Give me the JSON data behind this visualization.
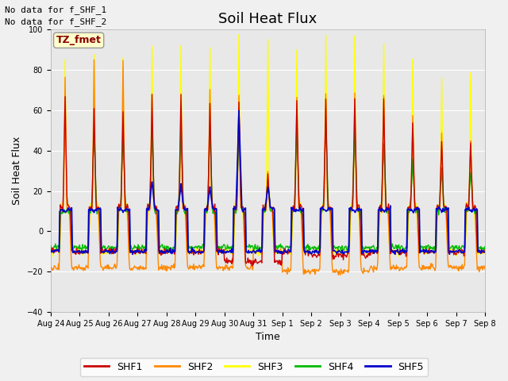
{
  "title": "Soil Heat Flux",
  "ylabel": "Soil Heat Flux",
  "xlabel": "Time",
  "annotations": [
    "No data for f_SHF_1",
    "No data for f_SHF_2"
  ],
  "tz_label": "TZ_fmet",
  "ylim": [
    -40,
    100
  ],
  "yticks": [
    -40,
    -20,
    0,
    20,
    40,
    60,
    80,
    100
  ],
  "x_tick_labels": [
    "Aug 24",
    "Aug 25",
    "Aug 26",
    "Aug 27",
    "Aug 28",
    "Aug 29",
    "Aug 30",
    "Aug 31",
    "Sep 1",
    "Sep 2",
    "Sep 3",
    "Sep 4",
    "Sep 5",
    "Sep 6",
    "Sep 7",
    "Sep 8"
  ],
  "series_colors": {
    "SHF1": "#cc0000",
    "SHF2": "#ff8800",
    "SHF3": "#ffff00",
    "SHF4": "#00bb00",
    "SHF5": "#0000cc"
  },
  "bg_color": "#f0f0f0",
  "plot_bg": "#e8e8e8",
  "grid_color": "#ffffff",
  "title_fontsize": 13,
  "label_fontsize": 9,
  "annot_fontsize": 8,
  "tick_fontsize": 7,
  "legend_fontsize": 9,
  "shf3_day_peaks": [
    85,
    87,
    87,
    91,
    91,
    91,
    97,
    94,
    90,
    97,
    97,
    93,
    86,
    75,
    79
  ],
  "shf1_day_peaks": [
    65,
    60,
    59,
    67,
    68,
    65,
    65,
    28,
    65,
    66,
    66,
    65,
    55,
    45,
    44
  ],
  "shf2_day_peaks": [
    76,
    84,
    85,
    60,
    60,
    70,
    68,
    30,
    68,
    68,
    68,
    68,
    58,
    48,
    46
  ],
  "shf4_day_peaks": [
    10,
    50,
    50,
    50,
    50,
    50,
    50,
    25,
    52,
    54,
    52,
    44,
    35,
    30,
    30
  ],
  "shf5_day_peaks": [
    10,
    10,
    10,
    25,
    23,
    22,
    60,
    22,
    10,
    10,
    10,
    10,
    10,
    10,
    10
  ],
  "shf1_night_troughs": [
    -10,
    -10,
    -10,
    -10,
    -10,
    -10,
    -15,
    -15,
    -10,
    -12,
    -12,
    -10,
    -10,
    -10,
    -10
  ],
  "shf2_night_troughs": [
    -18,
    -18,
    -18,
    -18,
    -18,
    -18,
    -18,
    -10,
    -20,
    -20,
    -20,
    -18,
    -18,
    -18,
    -18
  ],
  "shf3_night_troughs": [
    -10,
    -10,
    -10,
    -10,
    -10,
    -10,
    -10,
    -10,
    -10,
    -10,
    -10,
    -10,
    -10,
    -10,
    -10
  ],
  "shf4_night_troughs": [
    -8,
    -8,
    -8,
    -8,
    -8,
    -8,
    -8,
    -8,
    -8,
    -8,
    -8,
    -8,
    -8,
    -8,
    -8
  ],
  "shf5_night_troughs": [
    -10,
    -10,
    -10,
    -10,
    -10,
    -10,
    -10,
    -10,
    -10,
    -10,
    -10,
    -10,
    -10,
    -10,
    -10
  ]
}
